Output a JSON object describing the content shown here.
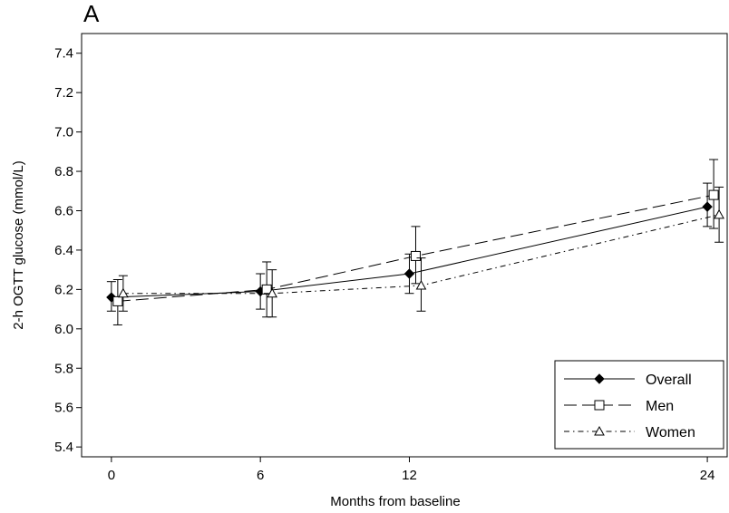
{
  "panel_label": "A",
  "chart_data": {
    "type": "line",
    "title": "",
    "xlabel": "Months from baseline",
    "ylabel": "2-h OGTT glucose (mmol/L)",
    "xlim": [
      -1.2,
      24.8
    ],
    "ylim": [
      5.35,
      7.5
    ],
    "x_ticks": [
      0,
      6,
      12,
      24
    ],
    "y_ticks": [
      5.4,
      5.6,
      5.8,
      6.0,
      6.2,
      6.4,
      6.6,
      6.8,
      7.0,
      7.2,
      7.4
    ],
    "y_tick_labels": [
      "5.4",
      "5.6",
      "5.8",
      "6.0",
      "6.2",
      "6.4",
      "6.6",
      "6.8",
      "7.0",
      "7.2",
      "7.4"
    ],
    "grid": false,
    "legend_position": "bottom-right",
    "series": [
      {
        "name": "Overall",
        "marker": "filled-diamond",
        "line_style": "solid",
        "color": "#000000",
        "x_offset": 0,
        "x": [
          0,
          6,
          12,
          24
        ],
        "y": [
          6.16,
          6.19,
          6.28,
          6.62
        ],
        "ci_low": [
          6.09,
          6.1,
          6.18,
          6.52
        ],
        "ci_high": [
          6.24,
          6.28,
          6.38,
          6.74
        ]
      },
      {
        "name": "Men",
        "marker": "open-square",
        "line_style": "long-dash",
        "color": "#000000",
        "x_offset": 0,
        "x": [
          0,
          6,
          12,
          24
        ],
        "y": [
          6.14,
          6.2,
          6.37,
          6.68
        ],
        "ci_low": [
          6.02,
          6.06,
          6.23,
          6.51
        ],
        "ci_high": [
          6.25,
          6.34,
          6.52,
          6.86
        ]
      },
      {
        "name": "Women",
        "marker": "open-triangle",
        "line_style": "dash-dot",
        "color": "#000000",
        "x_offset": 0,
        "x": [
          0,
          6,
          12,
          24
        ],
        "y": [
          6.18,
          6.18,
          6.22,
          6.58
        ],
        "ci_low": [
          6.09,
          6.06,
          6.09,
          6.44
        ],
        "ci_high": [
          6.27,
          6.3,
          6.36,
          6.72
        ]
      }
    ]
  }
}
